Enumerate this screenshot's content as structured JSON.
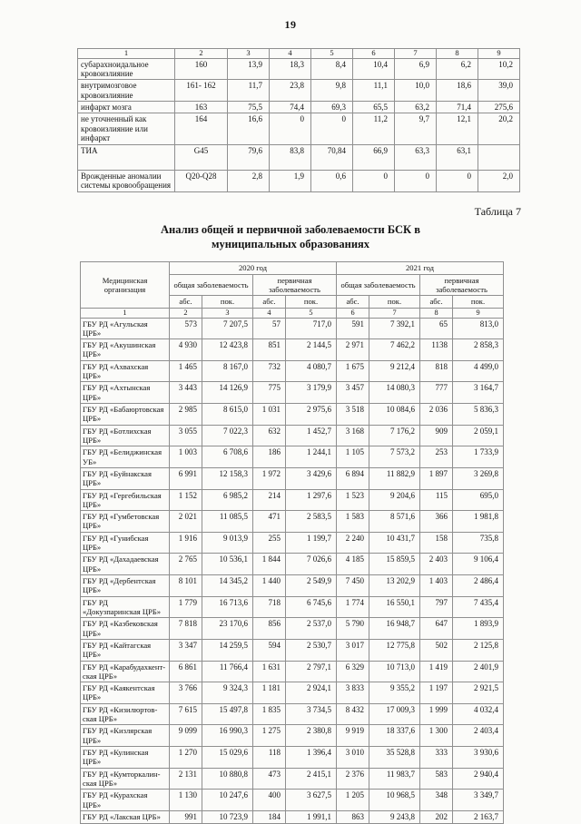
{
  "page": {
    "number": "19"
  },
  "table6": {
    "nums": [
      "1",
      "2",
      "3",
      "4",
      "5",
      "6",
      "7",
      "8",
      "9"
    ],
    "rows": [
      {
        "label": "субарахноидальное кровоизлияние",
        "code": "160",
        "cells": [
          "13,9",
          "18,3",
          "8,4",
          "10,4",
          "6,9",
          "6,2",
          "10,2"
        ]
      },
      {
        "label": "внутримозговое кровоизлияние",
        "code": "161- 162",
        "cells": [
          "11,7",
          "23,8",
          "9,8",
          "11,1",
          "10,0",
          "18,6",
          "39,0"
        ]
      },
      {
        "label": "инфаркт мозга",
        "code": "163",
        "cells": [
          "75,5",
          "74,4",
          "69,3",
          "65,5",
          "63,2",
          "71,4",
          "275,6"
        ]
      },
      {
        "label": "не уточненный как кровоизлияние или инфаркт",
        "code": "164",
        "cells": [
          "16,6",
          "0",
          "0",
          "11,2",
          "9,7",
          "12,1",
          "20,2"
        ]
      },
      {
        "label": "ТИА",
        "code": "G45",
        "cells": [
          "79,6",
          "83,8",
          "70,84",
          "66,9",
          "63,3",
          "63,1",
          ""
        ]
      },
      {
        "label": "Врожденные аномалии системы кровообращения",
        "code": "Q20-Q28",
        "cells": [
          "2,8",
          "1,9",
          "0,6",
          "0",
          "0",
          "0",
          "2,0"
        ]
      }
    ]
  },
  "caption": {
    "table_label": "Таблица 7",
    "title_line1": "Анализ общей и первичной заболеваемости БСК в",
    "title_line2": "муниципальных образованиях"
  },
  "table7": {
    "org_header": "Медицинская организация",
    "year2020": "2020 год",
    "year2021": "2021 год",
    "groups": [
      "общая заболеваемость",
      "первичная заболеваемость",
      "общая заболеваемость",
      "первичная заболеваемость"
    ],
    "subs": [
      "абс.",
      "пок.",
      "абс.",
      "пок.",
      "абс.",
      "пок.",
      "абс.",
      "пок."
    ],
    "nums": [
      "1",
      "2",
      "3",
      "4",
      "5",
      "6",
      "7",
      "8",
      "9"
    ],
    "rows": [
      {
        "org": "ГБУ РД «Агульская ЦРБ»",
        "values": [
          "573",
          "7 207,5",
          "57",
          "717,0",
          "591",
          "7 392,1",
          "65",
          "813,0"
        ]
      },
      {
        "org": "ГБУ РД «Акушинская ЦРБ»",
        "values": [
          "4 930",
          "12 423,8",
          "851",
          "2 144,5",
          "2 971",
          "7 462,2",
          "1138",
          "2 858,3"
        ]
      },
      {
        "org": "ГБУ РД «Ахвахская ЦРБ»",
        "values": [
          "1 465",
          "8 167,0",
          "732",
          "4 080,7",
          "1 675",
          "9 212,4",
          "818",
          "4 499,0"
        ]
      },
      {
        "org": "ГБУ РД «Ахтынская ЦРБ»",
        "values": [
          "3 443",
          "14 126,9",
          "775",
          "3 179,9",
          "3 457",
          "14 080,3",
          "777",
          "3 164,7"
        ]
      },
      {
        "org": "ГБУ РД «Бабаюртовская ЦРБ»",
        "values": [
          "2 985",
          "8 615,0",
          "1 031",
          "2 975,6",
          "3 518",
          "10 084,6",
          "2 036",
          "5 836,3"
        ]
      },
      {
        "org": "ГБУ РД «Ботлихская ЦРБ»",
        "values": [
          "3 055",
          "7 022,3",
          "632",
          "1 452,7",
          "3 168",
          "7 176,2",
          "909",
          "2 059,1"
        ]
      },
      {
        "org": "ГБУ РД «Белиджинская УБ»",
        "values": [
          "1 003",
          "6 708,6",
          "186",
          "1 244,1",
          "1 105",
          "7 573,2",
          "253",
          "1 733,9"
        ]
      },
      {
        "org": "ГБУ РД «Буйнакская ЦРБ»",
        "values": [
          "6 991",
          "12 158,3",
          "1 972",
          "3 429,6",
          "6 894",
          "11 882,9",
          "1 897",
          "3 269,8"
        ]
      },
      {
        "org": "ГБУ РД «Гергебильская ЦРБ»",
        "values": [
          "1 152",
          "6 985,2",
          "214",
          "1 297,6",
          "1 523",
          "9 204,6",
          "115",
          "695,0"
        ]
      },
      {
        "org": "ГБУ РД «Гумбетовская ЦРБ»",
        "values": [
          "2 021",
          "11 085,5",
          "471",
          "2 583,5",
          "1 583",
          "8 571,6",
          "366",
          "1 981,8"
        ]
      },
      {
        "org": "ГБУ РД «Гунибская ЦРБ»",
        "values": [
          "1 916",
          "9 013,9",
          "255",
          "1 199,7",
          "2 240",
          "10 431,7",
          "158",
          "735,8"
        ]
      },
      {
        "org": "ГБУ РД «Дахадаевская ЦРБ»",
        "values": [
          "2 765",
          "10 536,1",
          "1 844",
          "7 026,6",
          "4 185",
          "15 859,5",
          "2 403",
          "9 106,4"
        ]
      },
      {
        "org": "ГБУ РД «Дербентская ЦРБ»",
        "values": [
          "8 101",
          "14 345,2",
          "1 440",
          "2 549,9",
          "7 450",
          "13 202,9",
          "1 403",
          "2 486,4"
        ]
      },
      {
        "org": "ГБУ РД «Докузпаринская ЦРБ»",
        "values": [
          "1 779",
          "16 713,6",
          "718",
          "6 745,6",
          "1 774",
          "16 550,1",
          "797",
          "7 435,4"
        ]
      },
      {
        "org": "ГБУ РД «Казбековская ЦРБ»",
        "values": [
          "7 818",
          "23 170,6",
          "856",
          "2 537,0",
          "5 790",
          "16 948,7",
          "647",
          "1 893,9"
        ]
      },
      {
        "org": "ГБУ РД «Кайтагская ЦРБ»",
        "values": [
          "3 347",
          "14 259,5",
          "594",
          "2 530,7",
          "3 017",
          "12 775,8",
          "502",
          "2 125,8"
        ]
      },
      {
        "org": "ГБУ РД «Карабудахкент-ская ЦРБ»",
        "values": [
          "6 861",
          "11 766,4",
          "1 631",
          "2 797,1",
          "6 329",
          "10 713,0",
          "1 419",
          "2 401,9"
        ]
      },
      {
        "org": "ГБУ РД «Каякентская ЦРБ»",
        "values": [
          "3 766",
          "9 324,3",
          "1 181",
          "2 924,1",
          "3 833",
          "9 355,2",
          "1 197",
          "2 921,5"
        ]
      },
      {
        "org": "ГБУ РД «Кизилюртов-ская ЦРБ»",
        "values": [
          "7 615",
          "15 497,8",
          "1 835",
          "3 734,5",
          "8 432",
          "17 009,3",
          "1 999",
          "4 032,4"
        ]
      },
      {
        "org": "ГБУ РД «Кизлярская ЦРБ»",
        "values": [
          "9 099",
          "16 990,3",
          "1 275",
          "2 380,8",
          "9 919",
          "18 337,6",
          "1 300",
          "2 403,4"
        ]
      },
      {
        "org": "ГБУ РД «Кулинская ЦРБ»",
        "values": [
          "1 270",
          "15 029,6",
          "118",
          "1 396,4",
          "3 010",
          "35 528,8",
          "333",
          "3 930,6"
        ]
      },
      {
        "org": "ГБУ РД «Кумторкалин-ская ЦРБ»",
        "values": [
          "2 131",
          "10 880,8",
          "473",
          "2 415,1",
          "2 376",
          "11 983,7",
          "583",
          "2 940,4"
        ]
      },
      {
        "org": "ГБУ РД «Курахская ЦРБ»",
        "values": [
          "1 130",
          "10 247,6",
          "400",
          "3 627,5",
          "1 205",
          "10 968,5",
          "348",
          "3 349,7"
        ]
      },
      {
        "org": "ГБУ РД «Лакская ЦРБ»",
        "values": [
          "991",
          "10 723,9",
          "184",
          "1 991,1",
          "863",
          "9 243,8",
          "202",
          "2 163,7"
        ]
      }
    ]
  }
}
